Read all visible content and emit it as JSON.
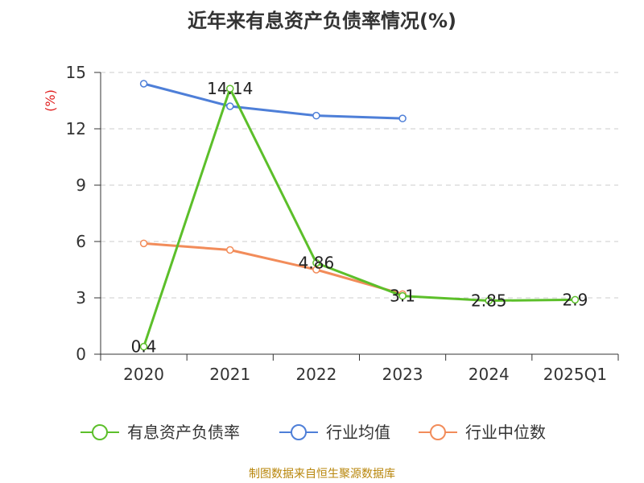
{
  "chart_data": {
    "type": "line",
    "title": "近年来有息资产负债率情况(%)",
    "ylabel": "(%)",
    "xlabel": "",
    "categories": [
      "2020",
      "2021",
      "2022",
      "2023",
      "2024",
      "2025Q1"
    ],
    "ylim": [
      0,
      15
    ],
    "yticks": [
      0,
      3,
      6,
      9,
      12,
      15
    ],
    "grid": true,
    "legend_position": "bottom",
    "series": [
      {
        "name": "有息资产负债率",
        "color": "#5cbf2a",
        "values": [
          0.4,
          14.14,
          4.86,
          3.1,
          2.85,
          2.9
        ],
        "labels": [
          "0.4",
          "14.14",
          "4.86",
          "3.1",
          "2.85",
          "2.9"
        ]
      },
      {
        "name": "行业均值",
        "color": "#4e7fd8",
        "values": [
          14.4,
          13.2,
          12.7,
          12.55,
          null,
          null
        ]
      },
      {
        "name": "行业中位数",
        "color": "#f28c5a",
        "values": [
          5.9,
          5.55,
          4.5,
          3.2,
          null,
          null
        ]
      }
    ]
  },
  "footer": {
    "source": "制图数据来自恒生聚源数据库"
  },
  "colors": {
    "axis": "#333333",
    "grid": "#cccccc",
    "ylabel": "#e02020",
    "footer": "#b8860b"
  }
}
